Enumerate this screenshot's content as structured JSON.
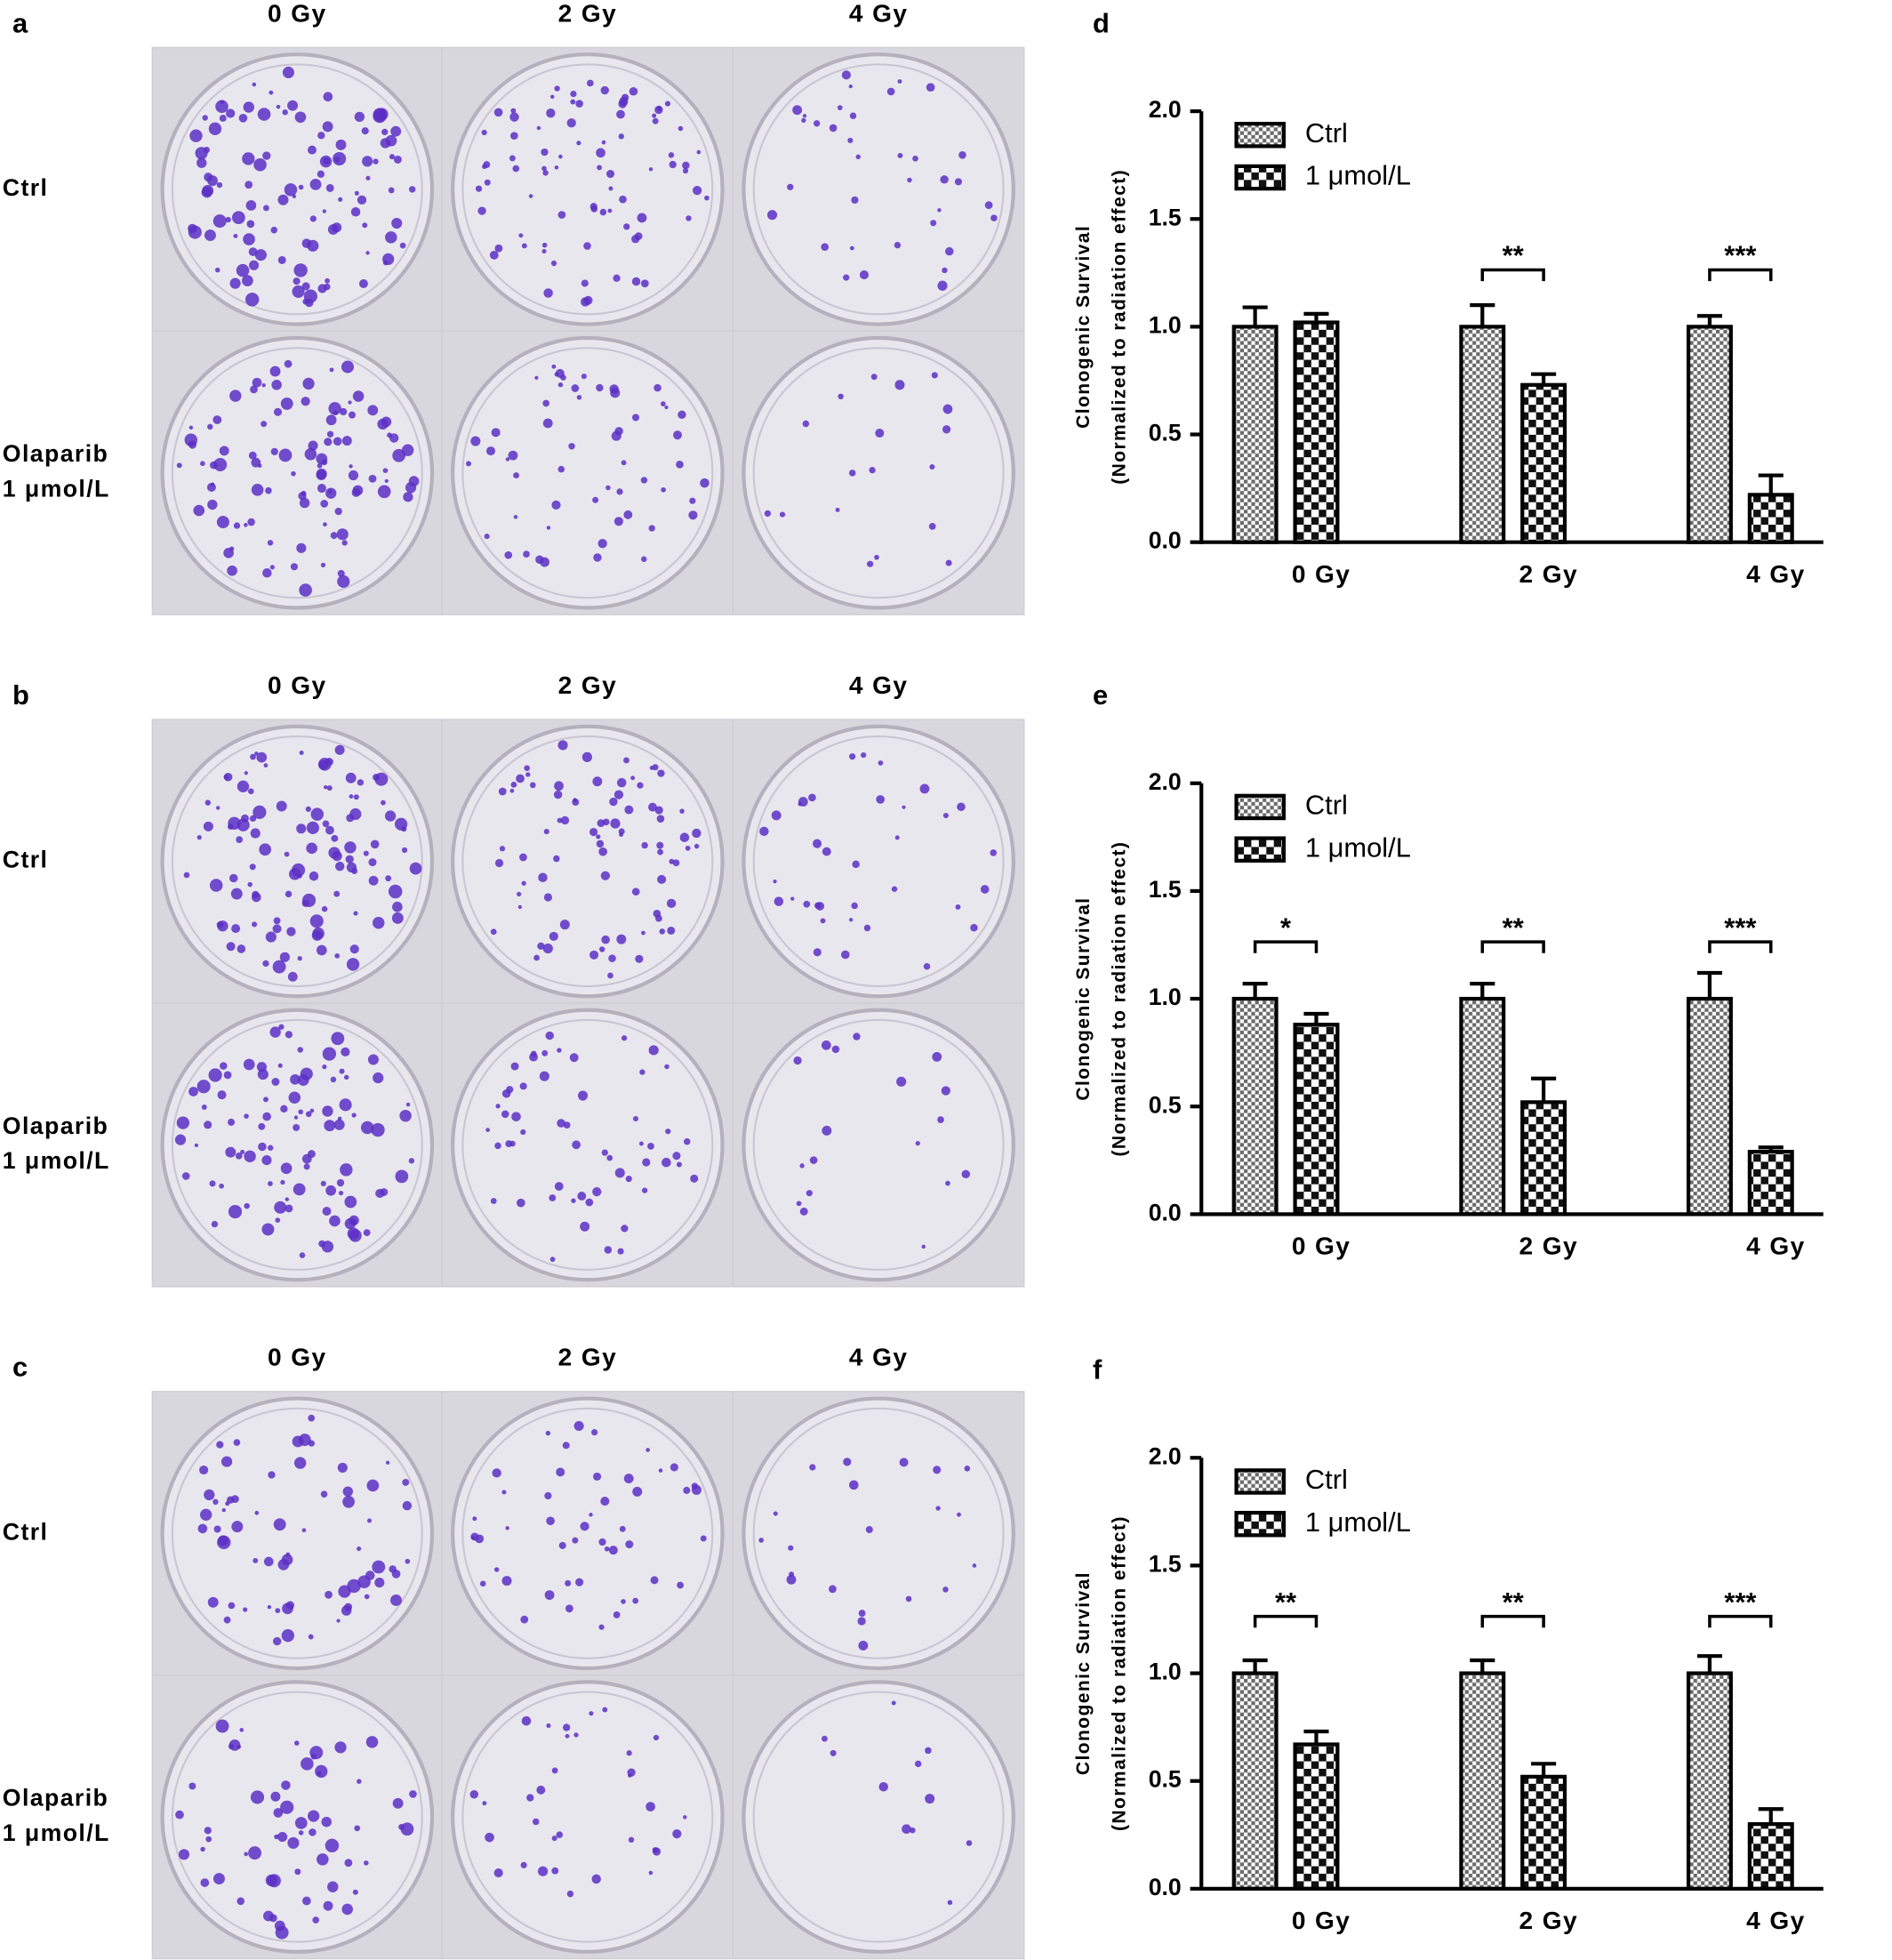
{
  "photo_panels": [
    {
      "label": "a",
      "columns": [
        "0 Gy",
        "2 Gy",
        "4 Gy"
      ],
      "rows": [
        [
          "Ctrl"
        ],
        [
          "Olaparib",
          "1 μmol/L"
        ]
      ]
    },
    {
      "label": "b",
      "columns": [
        "0 Gy",
        "2 Gy",
        "4 Gy"
      ],
      "rows": [
        [
          "Ctrl"
        ],
        [
          "Olaparib",
          "1 μmol/L"
        ]
      ]
    },
    {
      "label": "c",
      "columns": [
        "0 Gy",
        "2 Gy",
        "4 Gy"
      ],
      "rows": [
        [
          "Ctrl"
        ],
        [
          "Olaparib",
          "1 μmol/L"
        ]
      ]
    }
  ],
  "chart_data": [
    {
      "type": "bar",
      "panel_label": "d",
      "y_label": [
        "Clonogenic Survival",
        "(Normalized to radiation effect)"
      ],
      "categories": [
        "0 Gy",
        "2 Gy",
        "4 Gy"
      ],
      "series": [
        {
          "name": "Ctrl",
          "color": "#000000",
          "pattern": "fine-check",
          "values": [
            1.0,
            1.0,
            1.0
          ],
          "errors": [
            0.09,
            0.1,
            0.05
          ]
        },
        {
          "name": "1 μmol/L",
          "color": "#000000",
          "pattern": "coarse-check",
          "values": [
            1.02,
            0.73,
            0.22
          ],
          "errors": [
            0.04,
            0.05,
            0.09
          ]
        }
      ],
      "significance": [
        null,
        "**",
        "***"
      ],
      "ylim": [
        0,
        2.0
      ],
      "yticks": [
        {
          "value": 0,
          "label": "0.0"
        },
        {
          "value": 0.5,
          "label": "0.5"
        },
        {
          "value": 1.0,
          "label": "1.0"
        },
        {
          "value": 1.5,
          "label": "1.5"
        },
        {
          "value": 2.0,
          "label": "2.0"
        }
      ],
      "legend": "upper left"
    },
    {
      "type": "bar",
      "panel_label": "e",
      "y_label": [
        "Clonogenic Survival",
        "(Normalized to radiation effect)"
      ],
      "categories": [
        "0 Gy",
        "2 Gy",
        "4 Gy"
      ],
      "series": [
        {
          "name": "Ctrl",
          "color": "#000000",
          "pattern": "fine-check",
          "values": [
            1.0,
            1.0,
            1.0
          ],
          "errors": [
            0.07,
            0.07,
            0.12
          ]
        },
        {
          "name": "1 μmol/L",
          "color": "#000000",
          "pattern": "coarse-check",
          "values": [
            0.88,
            0.52,
            0.29
          ],
          "errors": [
            0.05,
            0.11,
            0.02
          ]
        }
      ],
      "significance": [
        "*",
        "**",
        "***"
      ],
      "ylim": [
        0,
        2.0
      ],
      "yticks": [
        {
          "value": 0,
          "label": "0.0"
        },
        {
          "value": 0.5,
          "label": "0.5"
        },
        {
          "value": 1.0,
          "label": "1.0"
        },
        {
          "value": 1.5,
          "label": "1.5"
        },
        {
          "value": 2.0,
          "label": "2.0"
        }
      ],
      "legend": "upper left"
    },
    {
      "type": "bar",
      "panel_label": "f",
      "y_label": [
        "Clonogenic Survival",
        "(Normalized to radiation effect)"
      ],
      "categories": [
        "0 Gy",
        "2 Gy",
        "4 Gy"
      ],
      "series": [
        {
          "name": "Ctrl",
          "color": "#000000",
          "pattern": "fine-check",
          "values": [
            1.0,
            1.0,
            1.0
          ],
          "errors": [
            0.06,
            0.06,
            0.08
          ]
        },
        {
          "name": "1 μmol/L",
          "color": "#000000",
          "pattern": "coarse-check",
          "values": [
            0.67,
            0.52,
            0.3
          ],
          "errors": [
            0.06,
            0.06,
            0.07
          ]
        }
      ],
      "significance": [
        "**",
        "**",
        "***"
      ],
      "ylim": [
        0,
        2.0
      ],
      "yticks": [
        {
          "value": 0,
          "label": "0.0"
        },
        {
          "value": 0.5,
          "label": "0.5"
        },
        {
          "value": 1.0,
          "label": "1.0"
        },
        {
          "value": 1.5,
          "label": "1.5"
        },
        {
          "value": 2.0,
          "label": "2.0"
        }
      ],
      "legend": "upper left"
    }
  ]
}
